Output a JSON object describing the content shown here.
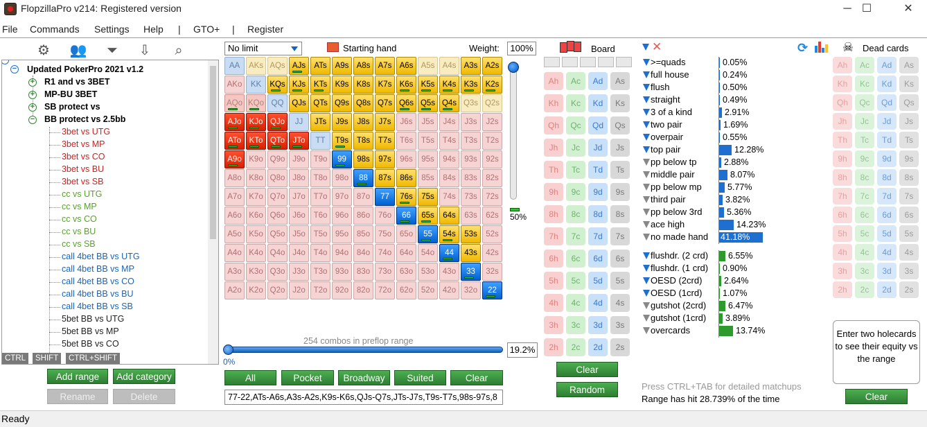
{
  "window": {
    "title": "FlopzillaPro v214: Registered version",
    "minimize": "─",
    "maximize": "☐",
    "close": "✕"
  },
  "menu": [
    "File",
    "Commands",
    "Settings",
    "Help",
    "|",
    "GTO+",
    "|",
    "Register"
  ],
  "toolbar_icons": [
    "gear-icon",
    "users-icon",
    "filter-plus-icon",
    "import-icon",
    "search-icon"
  ],
  "tree": {
    "root": "Updated PokerPro 2021 v1.2",
    "groups": [
      "R1 and vs 3BET",
      "MP-BU 3BET",
      "SB protect vs",
      "BB protect vs 2.5bb"
    ],
    "children": [
      {
        "t": "3bet vs UTG",
        "c": "#cc2222"
      },
      {
        "t": "3bet vs MP",
        "c": "#cc2222"
      },
      {
        "t": "3bet vs CO",
        "c": "#cc2222"
      },
      {
        "t": "3bet vs BU",
        "c": "#cc2222"
      },
      {
        "t": "3bet vs SB",
        "c": "#cc2222"
      },
      {
        "t": "cc vs UTG",
        "c": "#5aa02c"
      },
      {
        "t": "cc vs MP",
        "c": "#5aa02c"
      },
      {
        "t": "cc vs CO",
        "c": "#5aa02c"
      },
      {
        "t": "cc vs BU",
        "c": "#5aa02c"
      },
      {
        "t": "cc vs SB",
        "c": "#5aa02c"
      },
      {
        "t": "call 4bet BB vs UTG",
        "c": "#1565c0"
      },
      {
        "t": "call 4bet BB vs MP",
        "c": "#1565c0"
      },
      {
        "t": "call 4bet BB vs CO",
        "c": "#1565c0"
      },
      {
        "t": "call 4bet BB vs BU",
        "c": "#1565c0"
      },
      {
        "t": "call 4bet BB vs SB",
        "c": "#1565c0"
      },
      {
        "t": "5bet BB vs UTG",
        "c": "#222222"
      },
      {
        "t": "5bet BB vs MP",
        "c": "#222222"
      },
      {
        "t": "5bet BB vs CO",
        "c": "#222222"
      }
    ]
  },
  "modkeys": [
    "CTRL",
    "SHIFT",
    "CTRL+SHIFT"
  ],
  "left_buttons": {
    "add_range": "Add range",
    "add_category": "Add category",
    "rename": "Rename",
    "delete": "Delete"
  },
  "grid_header": {
    "game": "No limit",
    "starting_hand": "Starting hand",
    "weight_label": "Weight:",
    "weight": "100%"
  },
  "ranks": [
    "A",
    "K",
    "Q",
    "J",
    "T",
    "9",
    "8",
    "7",
    "6",
    "5",
    "4",
    "3",
    "2"
  ],
  "selected_hands": [
    "AA",
    "AKs",
    "AQs",
    "AJs",
    "ATs",
    "A9s",
    "A8s",
    "A7s",
    "A6s",
    "A3s",
    "A2s",
    "KK",
    "KQs",
    "KJs",
    "KTs",
    "K9s",
    "K8s",
    "K7s",
    "K6s",
    "K5s",
    "K4s",
    "K3s",
    "K2s",
    "AQo",
    "KQo",
    "QJs",
    "QTs",
    "Q9s",
    "Q8s",
    "Q7s",
    "Q6s",
    "Q5s",
    "Q4s",
    "AJo",
    "KJo",
    "QJo",
    "JTs",
    "J9s",
    "J8s",
    "J7s",
    "ATo",
    "KTo",
    "QTo",
    "JTo",
    "T9s",
    "T8s",
    "T7s",
    "A9o",
    "99",
    "98s",
    "97s",
    "88",
    "87s",
    "86s",
    "77",
    "76s",
    "75s",
    "66",
    "65s",
    "64s",
    "55",
    "54s",
    "53s",
    "44",
    "43s",
    "33",
    "22"
  ],
  "faded_selected": [
    "AA",
    "AKs",
    "AQs",
    "A5s",
    "A4s",
    "KK",
    "AQo",
    "KQo",
    "QQ",
    "Q3s",
    "Q2s",
    "JJ",
    "TT"
  ],
  "weight_bars": [
    "AJs",
    "KQs",
    "KJs",
    "KTs",
    "K6s",
    "K5s",
    "K4s",
    "K3s",
    "K2s",
    "Q6s",
    "Q5s",
    "Q4s",
    "AQo",
    "KQo",
    "AJo",
    "KJo",
    "QJo",
    "ATo",
    "KTo",
    "QTo",
    "JTo",
    "T9s",
    "A9o",
    "99",
    "88",
    "76s",
    "66",
    "65s",
    "55",
    "54s",
    "44",
    "33",
    "22"
  ],
  "slider": {
    "vertical": "50%",
    "horizontal": "0%",
    "combos": "254 combos in preflop range",
    "percent": "19.2%"
  },
  "grid_buttons": [
    "All",
    "Pocket",
    "Broadway",
    "Suited",
    "Clear"
  ],
  "range_text": "77-22,ATs-A6s,A3s-A2s,K9s-K6s,QJs-Q7s,JTs-J7s,T9s-T7s,98s-97s,8",
  "board": {
    "label": "Board",
    "suits": [
      "h",
      "c",
      "d",
      "s"
    ],
    "clear": "Clear",
    "random": "Random"
  },
  "stats": {
    "made": [
      {
        "n": "&gt;=quads",
        "v": "0.05%",
        "p": 0.05,
        "g": false
      },
      {
        "n": "full house",
        "v": "0.24%",
        "p": 0.24,
        "g": false
      },
      {
        "n": "flush",
        "v": "0.50%",
        "p": 0.5,
        "g": false
      },
      {
        "n": "straight",
        "v": "0.49%",
        "p": 0.49,
        "g": false
      },
      {
        "n": "3 of a kind",
        "v": "2.91%",
        "p": 2.91,
        "g": false
      },
      {
        "n": "two pair",
        "v": "1.69%",
        "p": 1.69,
        "g": false
      },
      {
        "n": "overpair",
        "v": "0.55%",
        "p": 0.55,
        "g": false
      },
      {
        "n": "top pair",
        "v": "12.28%",
        "p": 12.28,
        "g": false
      },
      {
        "n": "pp below tp",
        "v": "2.88%",
        "p": 2.88,
        "g": true
      },
      {
        "n": "middle pair",
        "v": "8.07%",
        "p": 8.07,
        "g": true
      },
      {
        "n": "pp below mp",
        "v": "5.77%",
        "p": 5.77,
        "g": true
      },
      {
        "n": "third pair",
        "v": "3.82%",
        "p": 3.82,
        "g": true
      },
      {
        "n": "pp below 3rd",
        "v": "5.36%",
        "p": 5.36,
        "g": true
      },
      {
        "n": "ace high",
        "v": "14.23%",
        "p": 14.23,
        "g": true
      },
      {
        "n": "no made hand",
        "v": "41.18%",
        "p": 41.18,
        "g": true
      }
    ],
    "draws": [
      {
        "n": "flushdr. (2 crd)",
        "v": "6.55%",
        "p": 6.55,
        "g": false
      },
      {
        "n": "flushdr. (1 crd)",
        "v": "0.90%",
        "p": 0.9,
        "g": false
      },
      {
        "n": "OESD (2crd)",
        "v": "2.64%",
        "p": 2.64,
        "g": false
      },
      {
        "n": "OESD (1crd)",
        "v": "1.07%",
        "p": 1.07,
        "g": false
      },
      {
        "n": "gutshot (2crd)",
        "v": "6.47%",
        "p": 6.47,
        "g": true
      },
      {
        "n": "gutshot (1crd)",
        "v": "3.89%",
        "p": 3.89,
        "g": true
      },
      {
        "n": "overcards",
        "v": "13.74%",
        "p": 13.74,
        "g": true
      }
    ],
    "hint": "Press CTRL+TAB for detailed matchups",
    "range_hit": "Range has hit 28.739% of the time"
  },
  "dead": {
    "label": "Dead cards",
    "message": "Enter two holecards to see their equity vs the range",
    "clear": "Clear"
  },
  "status": "Ready",
  "colors": {
    "made_bar": "#1e6fd0",
    "draw_bar": "#2e9a2e",
    "accent": "#1565c0"
  }
}
